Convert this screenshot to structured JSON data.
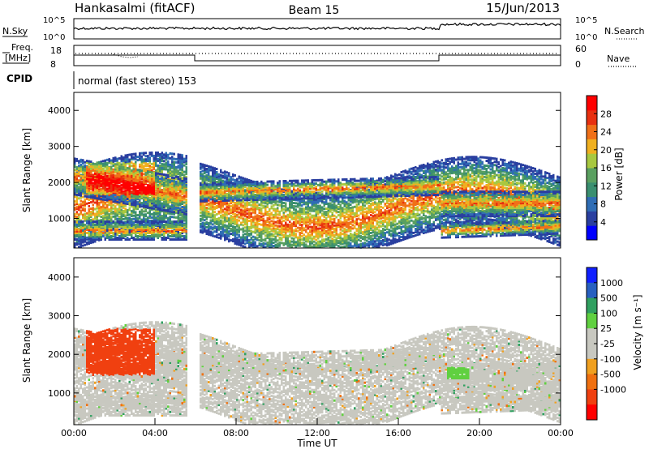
{
  "header": {
    "station": "Hankasalmi (fitACF)",
    "beam": "Beam 15",
    "date": "15/Jun/2013"
  },
  "noise_panel": {
    "left_label": "N.Sky",
    "right_label": "N.Search",
    "tick_top": "10^5",
    "tick_bottom": "10^0"
  },
  "freq_panel": {
    "left_label_1": "Freq.",
    "left_label_2": "[MHz]",
    "left_tick_top": "18",
    "left_tick_bottom": "8",
    "right_label": "Nave",
    "right_tick_top": "60",
    "right_tick_bottom": "0"
  },
  "cpid": {
    "label": "CPID",
    "value": "normal (fast stereo) 153"
  },
  "colors": {
    "power_scale": [
      "#0000ff",
      "#2a3fa0",
      "#2f6db5",
      "#3a8f70",
      "#5aa060",
      "#a8c840",
      "#f0b020",
      "#f07018",
      "#e83010",
      "#ff0000"
    ],
    "velocity_scale": [
      "#1020ff",
      "#2860c0",
      "#30a060",
      "#60d040",
      "#c8c8c0",
      "#c8c8c0",
      "#f0a020",
      "#f07010",
      "#f04010",
      "#ff0000"
    ]
  },
  "chart_data": [
    {
      "type": "heatmap",
      "panel": "power",
      "ylabel": "Slant Range [km]",
      "ylim": [
        180,
        4500
      ],
      "yticks": [
        "1000",
        "2000",
        "3000",
        "4000"
      ],
      "xlim": [
        0,
        24
      ],
      "colorbar_label": "Power [dB]",
      "colorbar_ticks": [
        "4",
        "8",
        "12",
        "16",
        "20",
        "24",
        "28"
      ],
      "colorbar_range": [
        0,
        32
      ]
    },
    {
      "type": "heatmap",
      "panel": "velocity",
      "ylabel": "Slant Range [km]",
      "ylim": [
        180,
        4500
      ],
      "yticks": [
        "1000",
        "2000",
        "3000",
        "4000"
      ],
      "xlim": [
        0,
        24
      ],
      "xticks": [
        "00:00",
        "04:00",
        "08:00",
        "12:00",
        "16:00",
        "20:00",
        "00:00"
      ],
      "xlabel": "Time UT",
      "colorbar_label": "Velocity [m s⁻¹]",
      "colorbar_ticks": [
        "1000",
        "500",
        "100",
        "25",
        "-25",
        "-100",
        "-500",
        "-1000"
      ]
    }
  ]
}
